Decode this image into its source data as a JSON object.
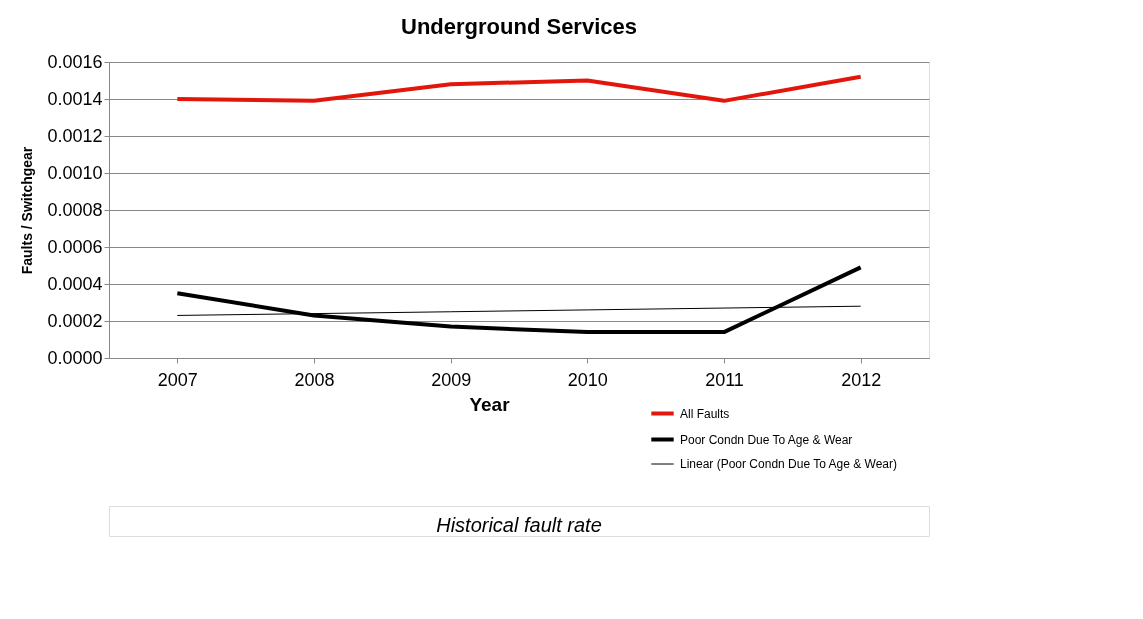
{
  "chart_data": {
    "type": "line",
    "title": "Underground Services",
    "xlabel": "Year",
    "ylabel": "Faults / Switchgear",
    "categories": [
      "2007",
      "2008",
      "2009",
      "2010",
      "2011",
      "2012"
    ],
    "series": [
      {
        "name": "All Faults",
        "color": "#e3160b",
        "values": [
          0.0014,
          0.00139,
          0.00148,
          0.0015,
          0.00139,
          0.00152
        ]
      },
      {
        "name": "Poor Condn Due To Age & Wear",
        "color": "#000000",
        "values": [
          0.00035,
          0.00023,
          0.00017,
          0.00014,
          0.00014,
          0.00049
        ]
      },
      {
        "name": "Linear (Poor Condn Due To Age & Wear)",
        "color": "#000000",
        "values": [
          0.00023,
          0.00024,
          0.00025,
          0.00026,
          0.00027,
          0.00028
        ]
      }
    ],
    "ylim": [
      0,
      0.0016
    ],
    "yticks": [
      {
        "value": 0,
        "label": "0.0000"
      },
      {
        "value": 0.0002,
        "label": "0.0002"
      },
      {
        "value": 0.0004,
        "label": "0.0004"
      },
      {
        "value": 0.0006,
        "label": "0.0006"
      },
      {
        "value": 0.0008,
        "label": "0.0008"
      },
      {
        "value": 0.001,
        "label": "0.0010"
      },
      {
        "value": 0.0012,
        "label": "0.0012"
      },
      {
        "value": 0.0014,
        "label": "0.0014"
      },
      {
        "value": 0.0016,
        "label": "0.0016"
      }
    ],
    "grid": "y",
    "legend": "bottom right",
    "marker": "none",
    "line_style": "solid",
    "annotations": [
      "Historical fault rate"
    ]
  }
}
